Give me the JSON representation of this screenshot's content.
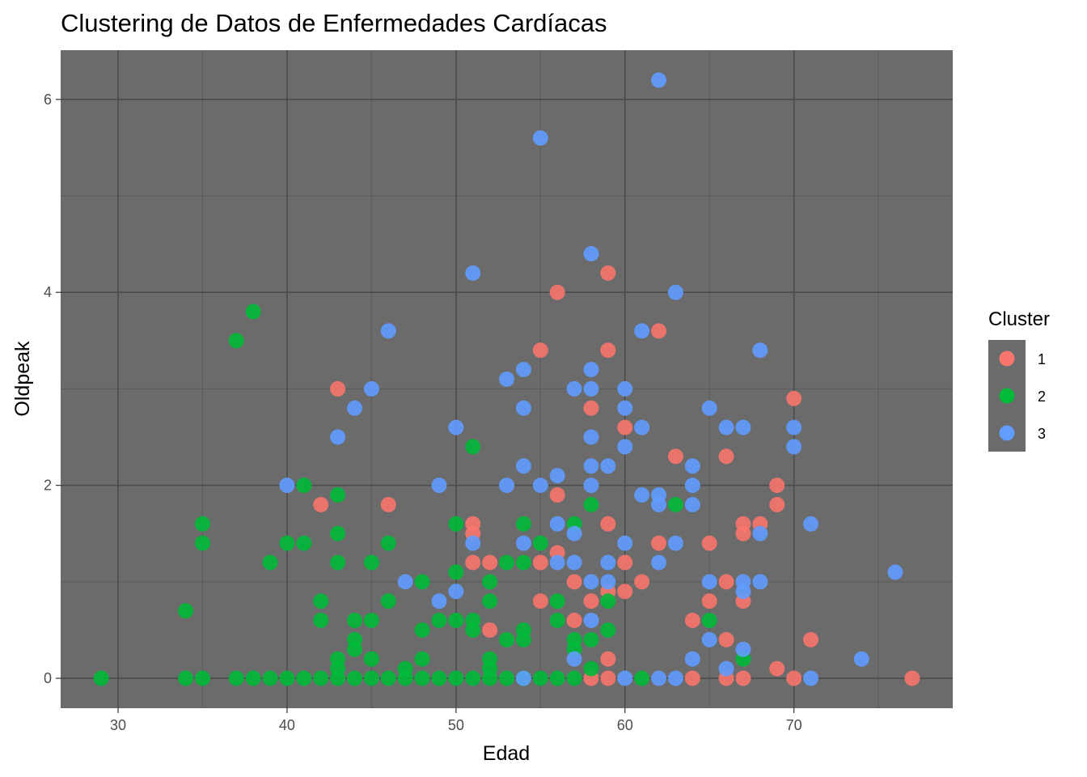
{
  "chart_data": {
    "type": "scatter",
    "title": "Clustering de Datos de Enfermedades Cardíacas",
    "xlabel": "Edad",
    "ylabel": "Oldpeak",
    "xlim": [
      26.6,
      79.4
    ],
    "ylim": [
      -0.31,
      6.51
    ],
    "x_ticks": [
      30,
      40,
      50,
      60,
      70
    ],
    "y_ticks": [
      0,
      2,
      4,
      6
    ],
    "grid": true,
    "panel_background": "#6b6b6b",
    "legend": {
      "title": "Cluster",
      "placement": "right",
      "entries": [
        "1",
        "2",
        "3"
      ]
    },
    "series": [
      {
        "name": "1",
        "color": "#f8766d",
        "points": [
          [
            43,
            3.0
          ],
          [
            42,
            1.8
          ],
          [
            46,
            1.8
          ],
          [
            51,
            1.6
          ],
          [
            51,
            1.5
          ],
          [
            51,
            1.2
          ],
          [
            52,
            1.2
          ],
          [
            52,
            0.5
          ],
          [
            55,
            3.4
          ],
          [
            55,
            1.2
          ],
          [
            55,
            0.8
          ],
          [
            56,
            4.0
          ],
          [
            56,
            1.9
          ],
          [
            56,
            1.3
          ],
          [
            57,
            1.0
          ],
          [
            57,
            0.6
          ],
          [
            58,
            2.8
          ],
          [
            58,
            0.8
          ],
          [
            58,
            0.0
          ],
          [
            59,
            4.2
          ],
          [
            59,
            3.4
          ],
          [
            59,
            1.6
          ],
          [
            59,
            0.9
          ],
          [
            59,
            0.2
          ],
          [
            59,
            0.0
          ],
          [
            60,
            2.6
          ],
          [
            60,
            1.2
          ],
          [
            60,
            0.9
          ],
          [
            61,
            1.0
          ],
          [
            62,
            3.6
          ],
          [
            62,
            1.4
          ],
          [
            63,
            2.3
          ],
          [
            64,
            0.6
          ],
          [
            64,
            0.0
          ],
          [
            65,
            1.4
          ],
          [
            65,
            0.8
          ],
          [
            66,
            2.3
          ],
          [
            66,
            1.0
          ],
          [
            66,
            0.4
          ],
          [
            66,
            0.0
          ],
          [
            67,
            1.6
          ],
          [
            67,
            1.5
          ],
          [
            67,
            0.8
          ],
          [
            67,
            0.0
          ],
          [
            68,
            1.6
          ],
          [
            69,
            2.0
          ],
          [
            69,
            1.8
          ],
          [
            69,
            0.1
          ],
          [
            70,
            2.9
          ],
          [
            70,
            0.0
          ],
          [
            71,
            0.4
          ],
          [
            77,
            0.0
          ]
        ]
      },
      {
        "name": "2",
        "color": "#00ba38",
        "points": [
          [
            29,
            0.0
          ],
          [
            34,
            0.7
          ],
          [
            34,
            0.0
          ],
          [
            35,
            1.6
          ],
          [
            35,
            1.4
          ],
          [
            35,
            0.0
          ],
          [
            37,
            3.5
          ],
          [
            37,
            0.0
          ],
          [
            38,
            3.8
          ],
          [
            38,
            0.0
          ],
          [
            39,
            1.2
          ],
          [
            39,
            0.0
          ],
          [
            40,
            1.4
          ],
          [
            40,
            0.0
          ],
          [
            41,
            2.0
          ],
          [
            41,
            1.4
          ],
          [
            41,
            0.0
          ],
          [
            42,
            0.8
          ],
          [
            42,
            0.6
          ],
          [
            42,
            0.0
          ],
          [
            43,
            1.9
          ],
          [
            43,
            1.5
          ],
          [
            43,
            1.2
          ],
          [
            43,
            0.2
          ],
          [
            43,
            0.1
          ],
          [
            43,
            0.0
          ],
          [
            44,
            0.6
          ],
          [
            44,
            0.4
          ],
          [
            44,
            0.3
          ],
          [
            44,
            0.0
          ],
          [
            45,
            1.2
          ],
          [
            45,
            0.6
          ],
          [
            45,
            0.2
          ],
          [
            45,
            0.0
          ],
          [
            46,
            1.4
          ],
          [
            46,
            0.8
          ],
          [
            46,
            0.0
          ],
          [
            47,
            0.1
          ],
          [
            47,
            0.0
          ],
          [
            48,
            1.0
          ],
          [
            48,
            0.5
          ],
          [
            48,
            0.2
          ],
          [
            48,
            0.0
          ],
          [
            49,
            0.6
          ],
          [
            49,
            0.0
          ],
          [
            50,
            1.6
          ],
          [
            50,
            1.1
          ],
          [
            50,
            0.6
          ],
          [
            50,
            0.0
          ],
          [
            51,
            2.4
          ],
          [
            51,
            0.6
          ],
          [
            51,
            0.5
          ],
          [
            51,
            0.0
          ],
          [
            52,
            1.0
          ],
          [
            52,
            0.8
          ],
          [
            52,
            0.2
          ],
          [
            52,
            0.1
          ],
          [
            52,
            0.0
          ],
          [
            53,
            1.2
          ],
          [
            53,
            0.4
          ],
          [
            53,
            0.0
          ],
          [
            54,
            1.6
          ],
          [
            54,
            1.2
          ],
          [
            54,
            0.5
          ],
          [
            54,
            0.4
          ],
          [
            54,
            0.0
          ],
          [
            55,
            1.4
          ],
          [
            55,
            0.0
          ],
          [
            56,
            0.8
          ],
          [
            56,
            0.6
          ],
          [
            56,
            0.0
          ],
          [
            57,
            1.6
          ],
          [
            57,
            0.4
          ],
          [
            57,
            0.3
          ],
          [
            57,
            0.0
          ],
          [
            58,
            1.8
          ],
          [
            58,
            0.4
          ],
          [
            58,
            0.1
          ],
          [
            59,
            0.5
          ],
          [
            59,
            0.8
          ],
          [
            61,
            0.0
          ],
          [
            63,
            1.8
          ],
          [
            65,
            0.6
          ],
          [
            67,
            0.2
          ]
        ]
      },
      {
        "name": "3",
        "color": "#619cff",
        "points": [
          [
            40,
            2.0
          ],
          [
            43,
            2.5
          ],
          [
            44,
            2.8
          ],
          [
            45,
            3.0
          ],
          [
            46,
            3.6
          ],
          [
            47,
            1.0
          ],
          [
            49,
            2.0
          ],
          [
            49,
            0.8
          ],
          [
            50,
            2.6
          ],
          [
            50,
            0.9
          ],
          [
            51,
            4.2
          ],
          [
            51,
            1.4
          ],
          [
            53,
            3.1
          ],
          [
            53,
            2.0
          ],
          [
            54,
            3.2
          ],
          [
            54,
            2.8
          ],
          [
            54,
            2.2
          ],
          [
            54,
            1.4
          ],
          [
            54,
            0.0
          ],
          [
            55,
            5.6
          ],
          [
            55,
            2.0
          ],
          [
            56,
            2.1
          ],
          [
            56,
            1.6
          ],
          [
            56,
            1.2
          ],
          [
            57,
            3.0
          ],
          [
            57,
            1.5
          ],
          [
            57,
            1.2
          ],
          [
            57,
            0.2
          ],
          [
            58,
            4.4
          ],
          [
            58,
            3.2
          ],
          [
            58,
            3.0
          ],
          [
            58,
            2.5
          ],
          [
            58,
            2.2
          ],
          [
            58,
            2.0
          ],
          [
            58,
            1.0
          ],
          [
            58,
            0.6
          ],
          [
            59,
            2.2
          ],
          [
            59,
            1.2
          ],
          [
            59,
            1.0
          ],
          [
            60,
            3.0
          ],
          [
            60,
            2.8
          ],
          [
            60,
            2.4
          ],
          [
            60,
            1.4
          ],
          [
            60,
            0.0
          ],
          [
            61,
            3.6
          ],
          [
            61,
            2.6
          ],
          [
            61,
            1.9
          ],
          [
            62,
            6.2
          ],
          [
            62,
            1.9
          ],
          [
            62,
            1.8
          ],
          [
            62,
            1.2
          ],
          [
            62,
            0.0
          ],
          [
            63,
            4.0
          ],
          [
            63,
            1.4
          ],
          [
            63,
            0.0
          ],
          [
            64,
            2.2
          ],
          [
            64,
            2.0
          ],
          [
            64,
            1.8
          ],
          [
            64,
            0.2
          ],
          [
            65,
            2.8
          ],
          [
            65,
            1.0
          ],
          [
            65,
            0.4
          ],
          [
            66,
            2.6
          ],
          [
            66,
            0.1
          ],
          [
            67,
            2.6
          ],
          [
            67,
            1.0
          ],
          [
            67,
            0.9
          ],
          [
            67,
            0.3
          ],
          [
            68,
            3.4
          ],
          [
            68,
            1.5
          ],
          [
            68,
            1.0
          ],
          [
            70,
            2.6
          ],
          [
            70,
            2.4
          ],
          [
            71,
            1.6
          ],
          [
            71,
            0.0
          ],
          [
            74,
            0.2
          ],
          [
            76,
            1.1
          ]
        ]
      }
    ]
  }
}
